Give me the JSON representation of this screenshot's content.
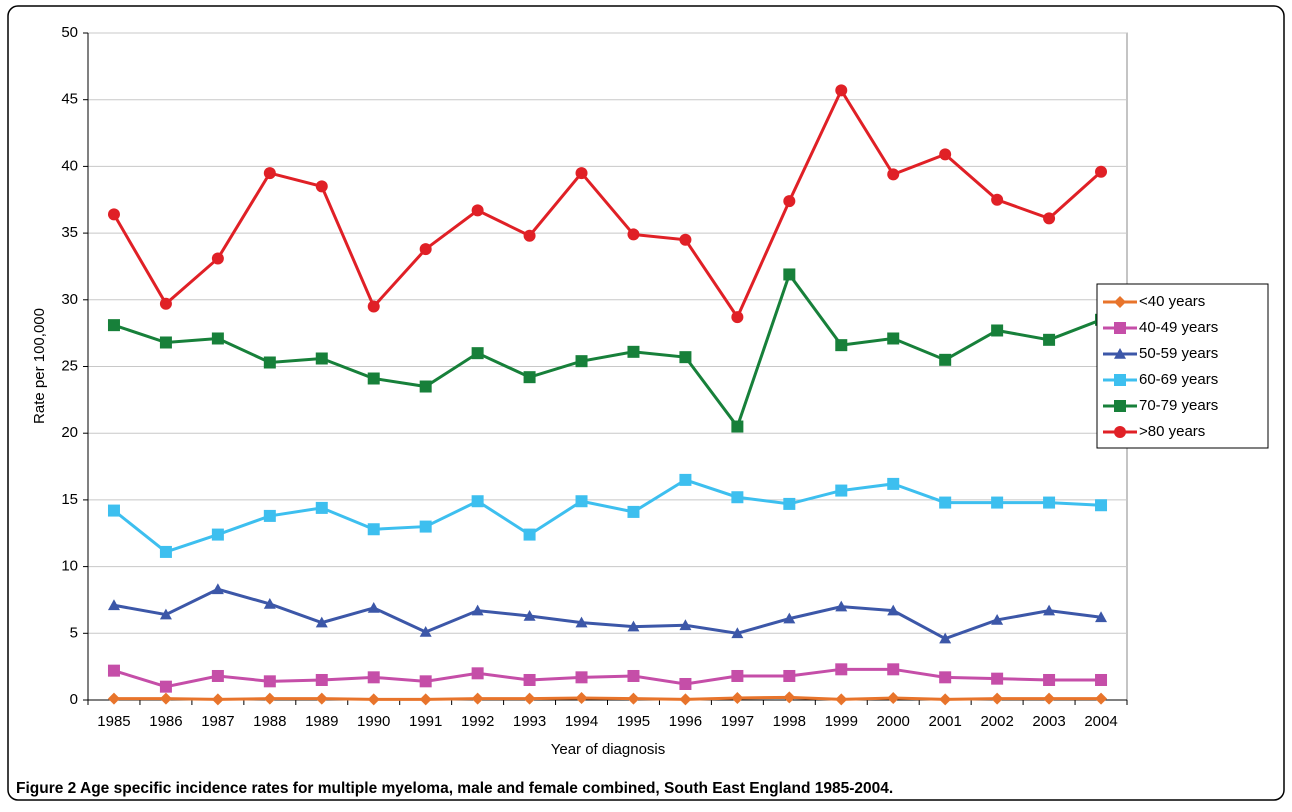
{
  "chart_data": {
    "type": "line",
    "x_label": "Year of diagnosis",
    "y_label": "Rate per 100,000",
    "caption": "Figure 2 Age specific incidence rates for multiple myeloma, male and female combined, South East England 1985-2004.",
    "categories": [
      "1985",
      "1986",
      "1987",
      "1988",
      "1989",
      "1990",
      "1991",
      "1992",
      "1993",
      "1994",
      "1995",
      "1996",
      "1997",
      "1998",
      "1999",
      "2000",
      "2001",
      "2002",
      "2003",
      "2004"
    ],
    "ylim": [
      0,
      50
    ],
    "yticks": [
      0,
      5,
      10,
      15,
      20,
      25,
      30,
      35,
      40,
      45,
      50
    ],
    "grid": true,
    "legend": "right",
    "series": [
      {
        "name": "<40 years",
        "color": "#e8742b",
        "marker": "diamond",
        "values": [
          0.1,
          0.1,
          0.05,
          0.1,
          0.1,
          0.05,
          0.05,
          0.1,
          0.1,
          0.15,
          0.1,
          0.05,
          0.15,
          0.2,
          0.05,
          0.15,
          0.05,
          0.1,
          0.1,
          0.1
        ]
      },
      {
        "name": "40-49 years",
        "color": "#c54ea8",
        "marker": "square",
        "values": [
          2.2,
          1.0,
          1.8,
          1.4,
          1.5,
          1.7,
          1.4,
          2.0,
          1.5,
          1.7,
          1.8,
          1.2,
          1.8,
          1.8,
          2.3,
          2.3,
          1.7,
          1.6,
          1.5,
          1.5
        ]
      },
      {
        "name": "50-59 years",
        "color": "#3c57a8",
        "marker": "triangle",
        "values": [
          7.1,
          6.4,
          8.3,
          7.2,
          5.8,
          6.9,
          5.1,
          6.7,
          6.3,
          5.8,
          5.5,
          5.6,
          5.0,
          6.1,
          7.0,
          6.7,
          4.6,
          6.0,
          6.7,
          6.2
        ]
      },
      {
        "name": "60-69 years",
        "color": "#3dbfef",
        "marker": "square",
        "values": [
          14.2,
          11.1,
          12.4,
          13.8,
          14.4,
          12.8,
          13.0,
          14.9,
          12.4,
          14.9,
          14.1,
          16.5,
          15.2,
          14.7,
          15.7,
          16.2,
          14.8,
          14.8,
          14.8,
          14.6
        ]
      },
      {
        "name": "70-79 years",
        "color": "#17803a",
        "marker": "square",
        "values": [
          28.1,
          26.8,
          27.1,
          25.3,
          25.6,
          24.1,
          23.5,
          26.0,
          24.2,
          25.4,
          26.1,
          25.7,
          20.5,
          31.9,
          26.6,
          27.1,
          25.5,
          27.7,
          27.0,
          28.5
        ]
      },
      {
        "name": ">80 years",
        "color": "#e02026",
        "marker": "circle",
        "values": [
          36.4,
          29.7,
          33.1,
          39.5,
          38.5,
          29.5,
          33.8,
          36.7,
          34.8,
          39.5,
          34.9,
          34.5,
          28.7,
          37.4,
          45.7,
          39.4,
          40.9,
          37.5,
          36.1,
          39.6
        ]
      }
    ]
  }
}
